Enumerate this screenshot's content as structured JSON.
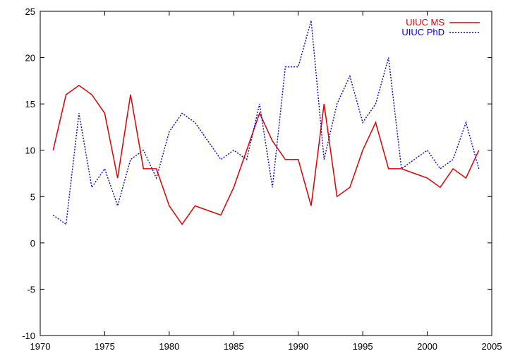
{
  "chart_data": {
    "type": "line",
    "title": "",
    "xlabel": "",
    "ylabel": "",
    "xlim": [
      1970,
      2005
    ],
    "ylim": [
      -10,
      25
    ],
    "x_ticks": [
      1970,
      1975,
      1980,
      1985,
      1990,
      1995,
      2000,
      2005
    ],
    "y_ticks": [
      -10,
      -5,
      0,
      5,
      10,
      15,
      20,
      25
    ],
    "grid": false,
    "legend_position": "top-right",
    "series": [
      {
        "name": "UIUC MS",
        "color": "#e00000",
        "style": "solid",
        "x": [
          1971,
          1972,
          1973,
          1974,
          1975,
          1976,
          1977,
          1978,
          1979,
          1980,
          1981,
          1982,
          1983,
          1984,
          1985,
          1986,
          1987,
          1988,
          1989,
          1990,
          1991,
          1992,
          1993,
          1994,
          1995,
          1996,
          1997,
          1998,
          1999,
          2000,
          2001,
          2002,
          2003,
          2004
        ],
        "values": [
          10,
          16,
          17,
          16,
          14,
          7,
          16,
          8,
          8,
          4,
          2,
          4,
          3.5,
          3,
          6,
          10,
          14,
          11,
          9,
          9,
          4,
          15,
          5,
          6,
          10,
          13,
          8,
          8,
          7.5,
          7,
          6,
          8,
          7,
          10
        ]
      },
      {
        "name": "UIUC PhD",
        "color": "#0000e0",
        "style": "dotted",
        "x": [
          1971,
          1972,
          1973,
          1974,
          1975,
          1976,
          1977,
          1978,
          1979,
          1980,
          1981,
          1982,
          1983,
          1984,
          1985,
          1986,
          1987,
          1988,
          1989,
          1990,
          1991,
          1992,
          1993,
          1994,
          1995,
          1996,
          1997,
          1998,
          1999,
          2000,
          2001,
          2002,
          2003,
          2004
        ],
        "values": [
          3,
          2,
          14,
          6,
          8,
          4,
          9,
          10,
          7,
          12,
          14,
          13,
          11,
          9,
          10,
          9,
          15,
          6,
          19,
          19,
          24,
          9,
          15,
          18,
          13,
          15,
          20,
          8,
          9,
          10,
          8,
          9,
          13,
          8
        ]
      }
    ]
  }
}
